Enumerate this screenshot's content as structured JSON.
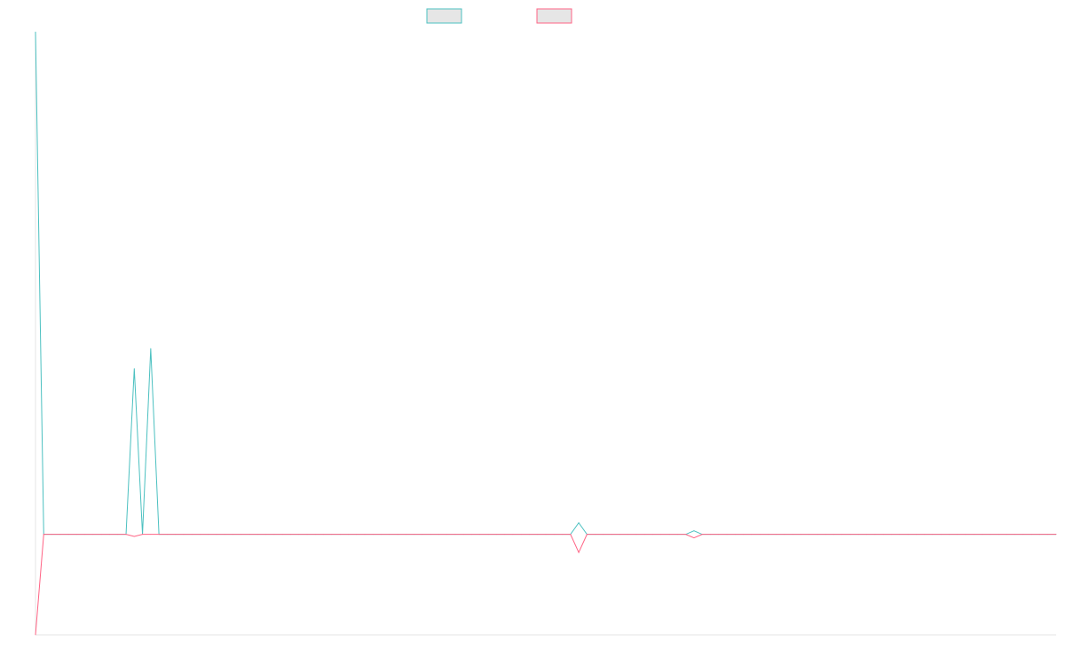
{
  "chart_data": {
    "type": "line",
    "x": [
      0,
      1,
      2,
      3,
      4,
      5,
      6,
      7,
      8,
      9,
      10,
      11,
      12,
      13,
      14,
      15,
      16,
      17,
      18,
      19,
      20,
      21,
      22,
      23,
      24,
      25,
      26,
      27,
      28,
      29,
      30,
      31,
      32,
      33,
      34,
      35,
      36,
      37,
      38,
      39,
      40,
      41,
      42,
      43,
      44,
      45,
      46,
      47,
      48,
      49,
      50,
      51,
      52,
      53,
      54,
      55,
      56,
      57,
      58,
      59,
      60,
      61,
      62,
      63,
      64,
      65,
      66,
      67,
      68,
      69,
      70,
      71,
      72,
      73,
      74,
      75,
      76,
      77,
      78,
      79,
      80,
      81,
      82,
      83,
      84,
      85,
      86,
      87,
      88,
      89,
      90,
      91,
      92,
      93,
      94,
      95,
      96,
      97,
      98,
      99,
      100,
      101,
      102,
      103,
      104,
      105,
      106,
      107,
      108,
      109,
      110,
      111,
      112,
      113,
      114,
      115,
      116,
      117,
      118,
      119,
      120,
      121,
      122,
      123,
      124
    ],
    "series": [
      {
        "color": "#4bc0c0",
        "values": [
          100,
          0,
          0,
          0,
          0,
          0,
          0,
          0,
          0,
          0,
          0,
          0,
          33,
          0,
          37,
          0,
          0,
          0,
          0,
          0,
          0,
          0,
          0,
          0,
          0,
          0,
          0,
          0,
          0,
          0,
          0,
          0,
          0,
          0,
          0,
          0,
          0,
          0,
          0,
          0,
          0,
          0,
          0,
          0,
          0,
          0,
          0,
          0,
          0,
          0,
          0,
          0,
          0,
          0,
          0,
          0,
          0,
          0,
          0,
          0,
          0,
          0,
          0,
          0,
          0,
          0,
          2.3,
          0,
          0,
          0,
          0,
          0,
          0,
          0,
          0,
          0,
          0,
          0,
          0,
          0,
          0.7,
          0,
          0,
          0,
          0,
          0,
          0,
          0,
          0,
          0,
          0,
          0,
          0,
          0,
          0,
          0,
          0,
          0,
          0,
          0,
          0,
          0,
          0,
          0,
          0,
          0,
          0,
          0,
          0,
          0,
          0,
          0,
          0,
          0,
          0,
          0,
          0,
          0,
          0,
          0,
          0,
          0,
          0,
          0,
          0
        ]
      },
      {
        "color": "#ff6384",
        "values": [
          -20,
          0,
          0,
          0,
          0,
          0,
          0,
          0,
          0,
          0,
          0,
          0,
          -0.4,
          0,
          0,
          0,
          0,
          0,
          0,
          0,
          0,
          0,
          0,
          0,
          0,
          0,
          0,
          0,
          0,
          0,
          0,
          0,
          0,
          0,
          0,
          0,
          0,
          0,
          0,
          0,
          0,
          0,
          0,
          0,
          0,
          0,
          0,
          0,
          0,
          0,
          0,
          0,
          0,
          0,
          0,
          0,
          0,
          0,
          0,
          0,
          0,
          0,
          0,
          0,
          0,
          0,
          -3.6,
          0,
          0,
          0,
          0,
          0,
          0,
          0,
          0,
          0,
          0,
          0,
          0,
          0,
          -0.7,
          0,
          0,
          0,
          0,
          0,
          0,
          0,
          0,
          0,
          0,
          0,
          0,
          0,
          0,
          0,
          0,
          0,
          0,
          0,
          0,
          0,
          0,
          0,
          0,
          0,
          0,
          0,
          0,
          0,
          0,
          0,
          0,
          0,
          0,
          0,
          0,
          0,
          0,
          0,
          0,
          0,
          0,
          0,
          0
        ]
      }
    ],
    "ylim": [
      -20,
      100
    ],
    "xlim": [
      0,
      124
    ],
    "grid": false,
    "legend": "top-center",
    "title": "",
    "xlabel": "",
    "ylabel": ""
  }
}
